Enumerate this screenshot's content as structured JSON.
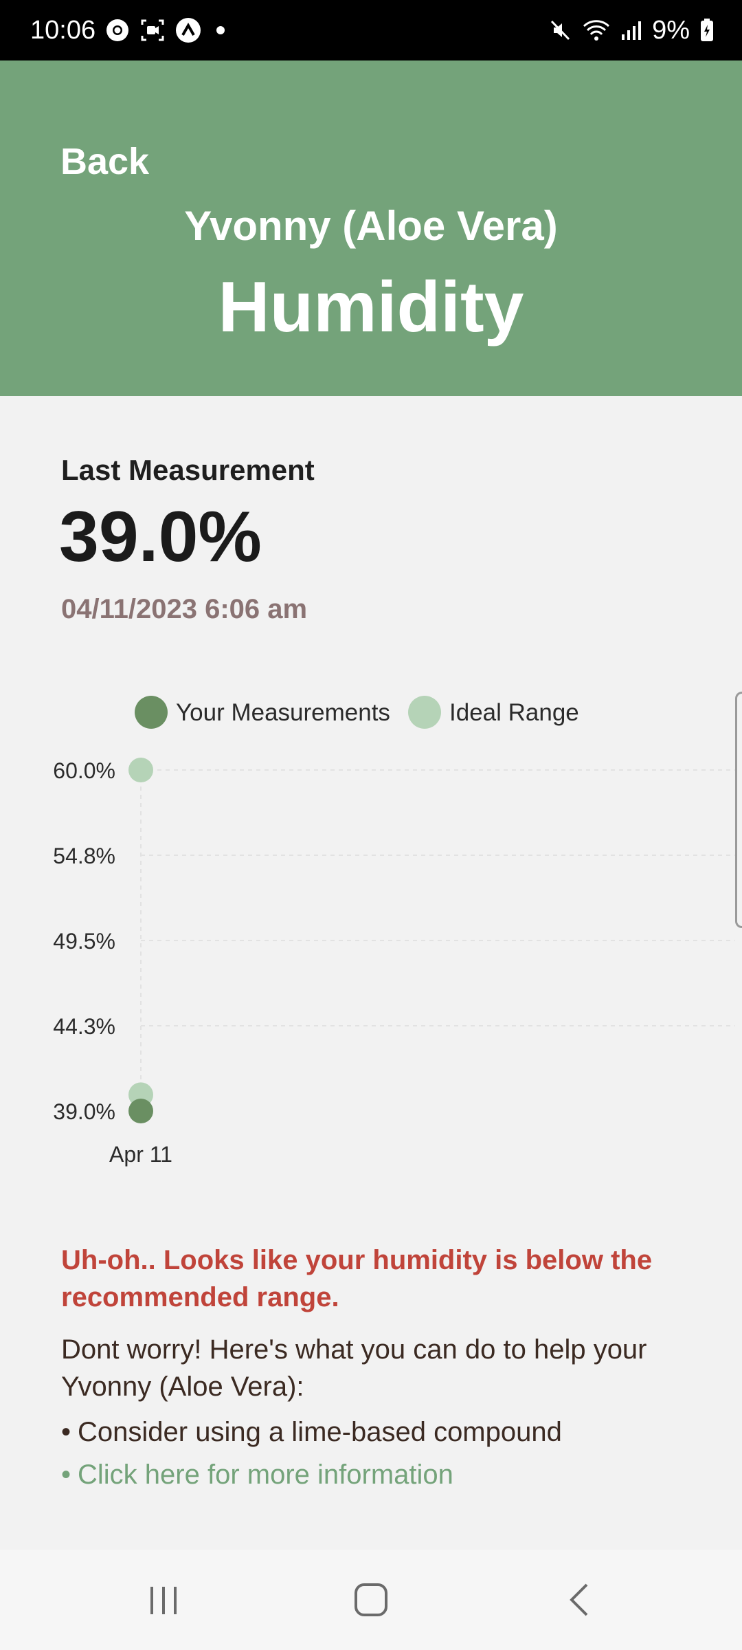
{
  "status_bar": {
    "time": "10:06",
    "battery": "9%",
    "icons": [
      "chrome-icon",
      "screen-record-icon",
      "app-a-icon",
      "notification-dot-icon",
      "mute-icon",
      "wifi-icon",
      "signal-icon",
      "battery-charging-icon"
    ]
  },
  "header": {
    "back_label": "Back",
    "plant_name": "Yvonny (Aloe Vera)",
    "title": "Humidity",
    "background_color": "#74a37a"
  },
  "measurement": {
    "label": "Last Measurement",
    "value": "39.0%",
    "timestamp": "04/11/2023 6:06 am"
  },
  "chart_data": {
    "type": "scatter",
    "legend": [
      {
        "name": "Your Measurements",
        "color": "#6a8f62"
      },
      {
        "name": "Ideal Range",
        "color": "#b5d3b7"
      }
    ],
    "x_categories": [
      "Apr 11"
    ],
    "y_ticks": [
      "60.0%",
      "54.8%",
      "49.5%",
      "44.3%",
      "39.0%"
    ],
    "ylim": [
      39.0,
      60.0
    ],
    "series": [
      {
        "name": "Your Measurements",
        "color": "#6a8f62",
        "points": [
          {
            "x": "Apr 11",
            "y": 39.0
          }
        ]
      },
      {
        "name": "Ideal Range",
        "color": "#b5d3b7",
        "points": [
          {
            "x": "Apr 11",
            "y": 60.0
          },
          {
            "x": "Apr 11",
            "y": 40.0
          }
        ]
      }
    ],
    "grid": true,
    "legend_position": "top"
  },
  "advice": {
    "warning": "Uh-oh.. Looks like your humidity is below the recommended range.",
    "intro": "Dont worry! Here's what you can do to help your Yvonny (Aloe Vera):",
    "item": "Consider using a lime-based compound",
    "link": "Click here for more information",
    "bullet": "•",
    "warning_color": "#c0443a",
    "link_color": "#74a37a"
  },
  "nav": {
    "recents": "recents-icon",
    "home": "home-icon",
    "back": "back-icon"
  }
}
